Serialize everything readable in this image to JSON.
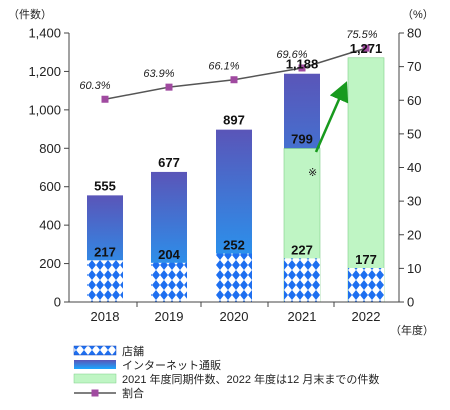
{
  "chart_data": {
    "type": "bar",
    "categories": [
      "2018",
      "2019",
      "2020",
      "2021",
      "2022"
    ],
    "xlabel": "（年度）",
    "y_left_label": "（件数）",
    "y_right_label": "（%）",
    "ylim": [
      0,
      1400
    ],
    "ylim_right": [
      0,
      80
    ],
    "y_ticks": [
      "0",
      "200",
      "400",
      "600",
      "800",
      "1,000",
      "1,200",
      "1,400"
    ],
    "y_right_ticks": [
      "0",
      "10",
      "20",
      "30",
      "40",
      "50",
      "60",
      "70",
      "80"
    ],
    "series": [
      {
        "name": "店舗",
        "values": [
          217,
          204,
          252,
          227,
          177
        ],
        "value_labels": [
          "217",
          "204",
          "252",
          "227",
          "177"
        ],
        "color": "#1e73e8"
      },
      {
        "name": "インターネット通販",
        "values": [
          555,
          677,
          897,
          1188,
          null
        ],
        "value_labels": [
          "555",
          "677",
          "897",
          "1,188",
          ""
        ],
        "color": "#3a62c2"
      },
      {
        "name": "2021 年度同期件数、2022 年度は12 月末までの件数",
        "values": [
          null,
          null,
          null,
          799,
          1271
        ],
        "value_labels": [
          "",
          "",
          "",
          "799",
          "1,271"
        ],
        "color": "#bff5c4"
      },
      {
        "name": "割合",
        "type": "line",
        "axis": "right",
        "values": [
          60.3,
          63.9,
          66.1,
          69.6,
          75.5
        ],
        "value_labels": [
          "60.3%",
          "63.9%",
          "66.1%",
          "69.6%",
          "75.5%"
        ],
        "color": "#a04aa0"
      }
    ],
    "annotation": "※",
    "legend_position": "bottom-left",
    "grid": false
  }
}
